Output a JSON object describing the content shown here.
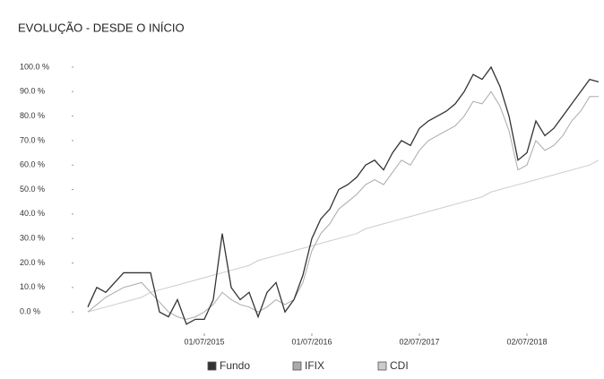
{
  "chart_data": {
    "type": "line",
    "title": "EVOLUÇÃO - DESDE O INÍCIO",
    "categories": [
      null,
      null,
      null,
      null,
      null,
      null,
      null,
      null,
      null,
      null,
      null,
      null,
      null,
      "01/07/2015",
      null,
      null,
      null,
      null,
      null,
      null,
      null,
      null,
      null,
      null,
      null,
      "01/07/2016",
      null,
      null,
      null,
      null,
      null,
      null,
      null,
      null,
      null,
      null,
      null,
      "02/07/2017",
      null,
      null,
      null,
      null,
      null,
      null,
      null,
      null,
      null,
      null,
      null,
      "02/07/2018",
      null,
      null,
      null,
      null,
      null,
      null,
      null,
      null
    ],
    "series": [
      {
        "name": "Fundo",
        "color": "#333333",
        "values": [
          2,
          10,
          8,
          12,
          16,
          16,
          16,
          16,
          0,
          -2,
          5,
          -5,
          -3,
          -3,
          5,
          32,
          10,
          5,
          8,
          -2,
          8,
          12,
          0,
          5,
          15,
          30,
          38,
          42,
          50,
          52,
          55,
          60,
          62,
          58,
          65,
          70,
          68,
          75,
          78,
          80,
          82,
          85,
          90,
          97,
          95,
          100,
          92,
          80,
          62,
          65,
          78,
          72,
          75,
          80,
          85,
          90,
          95,
          94
        ]
      },
      {
        "name": "IFIX",
        "color": "#aaaaaa",
        "values": [
          0,
          3,
          6,
          8,
          10,
          11,
          12,
          8,
          4,
          0,
          -2,
          -3,
          -2,
          0,
          3,
          8,
          5,
          3,
          2,
          0,
          2,
          5,
          3,
          5,
          12,
          25,
          32,
          36,
          42,
          45,
          48,
          52,
          54,
          52,
          57,
          62,
          60,
          66,
          70,
          72,
          74,
          76,
          80,
          86,
          85,
          90,
          84,
          74,
          58,
          60,
          70,
          66,
          68,
          72,
          78,
          82,
          88,
          88
        ]
      },
      {
        "name": "CDI",
        "color": "#cccccc",
        "values": [
          0,
          1,
          2,
          3,
          4,
          5,
          6,
          8,
          9,
          10,
          11,
          12,
          13,
          14,
          15,
          16,
          17,
          18,
          19,
          21,
          22,
          23,
          24,
          25,
          26,
          27,
          28,
          29,
          30,
          31,
          32,
          34,
          35,
          36,
          37,
          38,
          39,
          40,
          41,
          42,
          43,
          44,
          45,
          46,
          47,
          49,
          50,
          51,
          52,
          53,
          54,
          55,
          56,
          57,
          58,
          59,
          60,
          62
        ]
      }
    ],
    "ylim": [
      -8,
      104
    ],
    "yticks": [
      {
        "value": 0,
        "label": "0.0 %"
      },
      {
        "value": 10,
        "label": "10.0 %"
      },
      {
        "value": 20,
        "label": "20.0 %"
      },
      {
        "value": 30,
        "label": "30.0 %"
      },
      {
        "value": 40,
        "label": "40.0 %"
      },
      {
        "value": 50,
        "label": "50.0 %"
      },
      {
        "value": 60,
        "label": "60.0 %"
      },
      {
        "value": 70,
        "label": "70.0 %"
      },
      {
        "value": 80,
        "label": "80.0 %"
      },
      {
        "value": 90,
        "label": "90.0 %"
      },
      {
        "value": 100,
        "label": "100.0 %"
      }
    ],
    "grid": false
  }
}
